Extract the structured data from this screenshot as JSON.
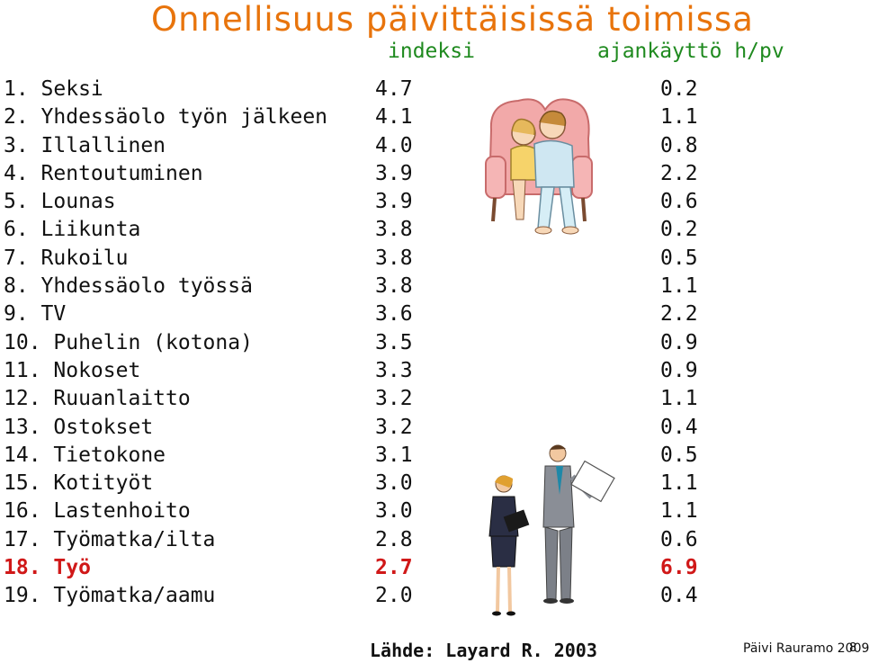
{
  "title": "Onnellisuus päivittäisissä toimissa",
  "headers": {
    "index": "indeksi",
    "time": "ajankäyttö h/pv"
  },
  "rows": [
    {
      "label": "1. Seksi",
      "index": "4.7",
      "time": "0.2"
    },
    {
      "label": "2. Yhdessäolo työn jälkeen",
      "index": "4.1",
      "time": "1.1"
    },
    {
      "label": "3. Illallinen",
      "index": "4.0",
      "time": "0.8"
    },
    {
      "label": "4. Rentoutuminen",
      "index": "3.9",
      "time": "2.2"
    },
    {
      "label": "5. Lounas",
      "index": "3.9",
      "time": "0.6"
    },
    {
      "label": "6. Liikunta",
      "index": "3.8",
      "time": "0.2"
    },
    {
      "label": "7. Rukoilu",
      "index": "3.8",
      "time": "0.5"
    },
    {
      "label": "8. Yhdessäolo työssä",
      "index": "3.8",
      "time": "1.1"
    },
    {
      "label": "9. TV",
      "index": "3.6",
      "time": "2.2"
    },
    {
      "label": "10. Puhelin (kotona)",
      "index": "3.5",
      "time": "0.9"
    },
    {
      "label": "11. Nokoset",
      "index": "3.3",
      "time": "0.9"
    },
    {
      "label": "12. Ruuanlaitto",
      "index": "3.2",
      "time": "1.1"
    },
    {
      "label": "13. Ostokset",
      "index": "3.2",
      "time": "0.4"
    },
    {
      "label": "14. Tietokone",
      "index": "3.1",
      "time": "0.5"
    },
    {
      "label": "15. Kotityöt",
      "index": "3.0",
      "time": "1.1"
    },
    {
      "label": "16. Lastenhoito",
      "index": "3.0",
      "time": "1.1"
    },
    {
      "label": "17. Työmatka/ilta",
      "index": "2.8",
      "time": "0.6"
    },
    {
      "label": "18. Työ",
      "index": "2.7",
      "time": "6.9"
    },
    {
      "label": "19. Työmatka/aamu",
      "index": "2.0",
      "time": "0.4"
    }
  ],
  "highlight_row": 17,
  "colors": {
    "title": "#e8740c",
    "headers": "#1f8a1f",
    "highlight": "#d01818"
  },
  "credit": "Päivi Rauramo 2009",
  "source": "Lähde: Layard R. 2003",
  "page_number": "8"
}
